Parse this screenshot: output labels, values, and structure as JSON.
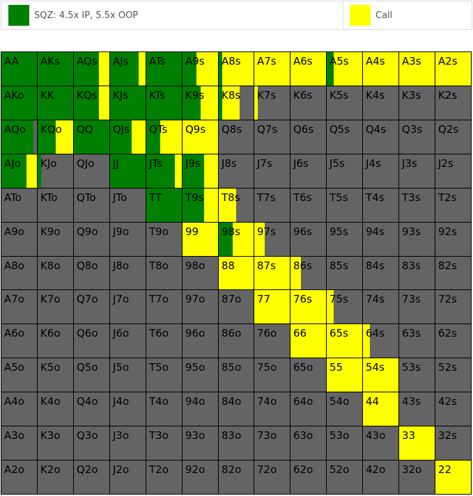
{
  "legend": {
    "items": [
      {
        "label": "SQZ: 4.5x IP, 5.5x OOP",
        "color": "#008000"
      },
      {
        "label": "Call",
        "color": "#ffff00"
      }
    ]
  },
  "colors": {
    "fold": "#646464",
    "raise": "#008000",
    "call": "#ffff00"
  },
  "hands": [
    [
      "AA",
      "AKs",
      "AQs",
      "AJs",
      "ATs",
      "A9s",
      "A8s",
      "A7s",
      "A6s",
      "A5s",
      "A4s",
      "A3s",
      "A2s"
    ],
    [
      "AKo",
      "KK",
      "KQs",
      "KJs",
      "KTs",
      "K9s",
      "K8s",
      "K7s",
      "K6s",
      "K5s",
      "K4s",
      "K3s",
      "K2s"
    ],
    [
      "AQo",
      "KQo",
      "QQ",
      "QJs",
      "QTs",
      "Q9s",
      "Q8s",
      "Q7s",
      "Q6s",
      "Q5s",
      "Q4s",
      "Q3s",
      "Q2s"
    ],
    [
      "AJo",
      "KJo",
      "QJo",
      "JJ",
      "JTs",
      "J9s",
      "J8s",
      "J7s",
      "J6s",
      "J5s",
      "J4s",
      "J3s",
      "J2s"
    ],
    [
      "ATo",
      "KTo",
      "QTo",
      "JTo",
      "TT",
      "T9s",
      "T8s",
      "T7s",
      "T6s",
      "T5s",
      "T4s",
      "T3s",
      "T2s"
    ],
    [
      "A9o",
      "K9o",
      "Q9o",
      "J9o",
      "T9o",
      "99",
      "98s",
      "97s",
      "96s",
      "95s",
      "94s",
      "93s",
      "92s"
    ],
    [
      "A8o",
      "K8o",
      "Q8o",
      "J8o",
      "T8o",
      "98o",
      "88",
      "87s",
      "86s",
      "85s",
      "84s",
      "83s",
      "82s"
    ],
    [
      "A7o",
      "K7o",
      "Q7o",
      "J7o",
      "T7o",
      "97o",
      "87o",
      "77",
      "76s",
      "75s",
      "74s",
      "73s",
      "72s"
    ],
    [
      "A6o",
      "K6o",
      "Q6o",
      "J6o",
      "T6o",
      "96o",
      "86o",
      "76o",
      "66",
      "65s",
      "64s",
      "63s",
      "62s"
    ],
    [
      "A5o",
      "K5o",
      "Q5o",
      "J5o",
      "T5o",
      "95o",
      "85o",
      "75o",
      "65o",
      "55",
      "54s",
      "53s",
      "52s"
    ],
    [
      "A4o",
      "K4o",
      "Q4o",
      "J4o",
      "T4o",
      "94o",
      "84o",
      "74o",
      "64o",
      "54o",
      "44",
      "43s",
      "42s"
    ],
    [
      "A3o",
      "K3o",
      "Q3o",
      "J3o",
      "T3o",
      "93o",
      "83o",
      "73o",
      "63o",
      "53o",
      "43o",
      "33",
      "32s"
    ],
    [
      "A2o",
      "K2o",
      "Q2o",
      "J2o",
      "T2o",
      "92o",
      "82o",
      "72o",
      "62o",
      "52o",
      "42o",
      "32o",
      "22"
    ]
  ],
  "strategy": [
    [
      [
        1,
        0
      ],
      [
        1,
        0
      ],
      [
        0.7,
        0.3
      ],
      [
        0.8,
        0.2
      ],
      [
        1,
        0
      ],
      [
        0.4,
        0.6
      ],
      [
        0.1,
        0.9
      ],
      [
        0,
        1
      ],
      [
        0,
        1
      ],
      [
        0.2,
        0.8
      ],
      [
        0,
        1
      ],
      [
        0,
        1
      ],
      [
        0,
        1
      ]
    ],
    [
      [
        1,
        0
      ],
      [
        1,
        0
      ],
      [
        0.7,
        0.3
      ],
      [
        1,
        0
      ],
      [
        1,
        0
      ],
      [
        0.5,
        0.5
      ],
      [
        0.1,
        0.5
      ],
      [
        0,
        0.1
      ],
      [
        0,
        0
      ],
      [
        0,
        0
      ],
      [
        0,
        0
      ],
      [
        0,
        0
      ],
      [
        0,
        0
      ]
    ],
    [
      [
        0.9,
        0
      ],
      [
        0.5,
        0.5
      ],
      [
        1,
        0
      ],
      [
        0.6,
        0.4
      ],
      [
        0.4,
        0.6
      ],
      [
        0,
        1
      ],
      [
        0,
        0
      ],
      [
        0,
        0
      ],
      [
        0,
        0
      ],
      [
        0,
        0
      ],
      [
        0,
        0
      ],
      [
        0,
        0
      ],
      [
        0,
        0
      ]
    ],
    [
      [
        0.7,
        0.3
      ],
      [
        0.1,
        0
      ],
      [
        0,
        0
      ],
      [
        1,
        0
      ],
      [
        0.8,
        0.2
      ],
      [
        0.6,
        0.4
      ],
      [
        0,
        0
      ],
      [
        0,
        0
      ],
      [
        0,
        0
      ],
      [
        0,
        0
      ],
      [
        0,
        0
      ],
      [
        0,
        0
      ],
      [
        0,
        0
      ]
    ],
    [
      [
        0,
        0
      ],
      [
        0,
        0
      ],
      [
        0,
        0
      ],
      [
        0,
        0
      ],
      [
        1,
        0
      ],
      [
        0.6,
        0.4
      ],
      [
        0,
        0.5
      ],
      [
        0,
        0
      ],
      [
        0,
        0
      ],
      [
        0,
        0
      ],
      [
        0,
        0
      ],
      [
        0,
        0
      ],
      [
        0,
        0
      ]
    ],
    [
      [
        0,
        0
      ],
      [
        0,
        0
      ],
      [
        0,
        0
      ],
      [
        0,
        0
      ],
      [
        0,
        0
      ],
      [
        0,
        1
      ],
      [
        0.4,
        0.6
      ],
      [
        0,
        0.3
      ],
      [
        0,
        0
      ],
      [
        0,
        0
      ],
      [
        0,
        0
      ],
      [
        0,
        0
      ],
      [
        0,
        0
      ]
    ],
    [
      [
        0,
        0
      ],
      [
        0,
        0
      ],
      [
        0,
        0
      ],
      [
        0,
        0
      ],
      [
        0,
        0
      ],
      [
        0,
        0
      ],
      [
        0,
        1
      ],
      [
        0,
        1
      ],
      [
        0,
        0.3
      ],
      [
        0,
        0
      ],
      [
        0,
        0
      ],
      [
        0,
        0
      ],
      [
        0,
        0
      ]
    ],
    [
      [
        0,
        0
      ],
      [
        0,
        0
      ],
      [
        0,
        0
      ],
      [
        0,
        0
      ],
      [
        0,
        0
      ],
      [
        0,
        0
      ],
      [
        0,
        0
      ],
      [
        0,
        1
      ],
      [
        0,
        1
      ],
      [
        0,
        0.2
      ],
      [
        0,
        0
      ],
      [
        0,
        0
      ],
      [
        0,
        0
      ]
    ],
    [
      [
        0,
        0
      ],
      [
        0,
        0
      ],
      [
        0,
        0
      ],
      [
        0,
        0
      ],
      [
        0,
        0
      ],
      [
        0,
        0
      ],
      [
        0,
        0
      ],
      [
        0,
        0
      ],
      [
        0,
        1
      ],
      [
        0,
        1
      ],
      [
        0,
        0.2
      ],
      [
        0,
        0
      ],
      [
        0,
        0
      ]
    ],
    [
      [
        0,
        0
      ],
      [
        0,
        0
      ],
      [
        0,
        0
      ],
      [
        0,
        0
      ],
      [
        0,
        0
      ],
      [
        0,
        0
      ],
      [
        0,
        0
      ],
      [
        0,
        0
      ],
      [
        0,
        0
      ],
      [
        0,
        1
      ],
      [
        0,
        1
      ],
      [
        0,
        0
      ],
      [
        0,
        0
      ]
    ],
    [
      [
        0,
        0
      ],
      [
        0,
        0
      ],
      [
        0,
        0
      ],
      [
        0,
        0
      ],
      [
        0,
        0
      ],
      [
        0,
        0
      ],
      [
        0,
        0
      ],
      [
        0,
        0
      ],
      [
        0,
        0
      ],
      [
        0,
        0
      ],
      [
        0,
        1
      ],
      [
        0,
        0
      ],
      [
        0,
        0
      ]
    ],
    [
      [
        0,
        0
      ],
      [
        0,
        0
      ],
      [
        0,
        0
      ],
      [
        0,
        0
      ],
      [
        0,
        0
      ],
      [
        0,
        0
      ],
      [
        0,
        0
      ],
      [
        0,
        0
      ],
      [
        0,
        0
      ],
      [
        0,
        0
      ],
      [
        0,
        0
      ],
      [
        0,
        1
      ],
      [
        0,
        0
      ]
    ],
    [
      [
        0,
        0
      ],
      [
        0,
        0
      ],
      [
        0,
        0
      ],
      [
        0,
        0
      ],
      [
        0,
        0
      ],
      [
        0,
        0
      ],
      [
        0,
        0
      ],
      [
        0,
        0
      ],
      [
        0,
        0
      ],
      [
        0,
        0
      ],
      [
        0,
        0
      ],
      [
        0,
        0
      ],
      [
        0,
        1
      ]
    ]
  ]
}
